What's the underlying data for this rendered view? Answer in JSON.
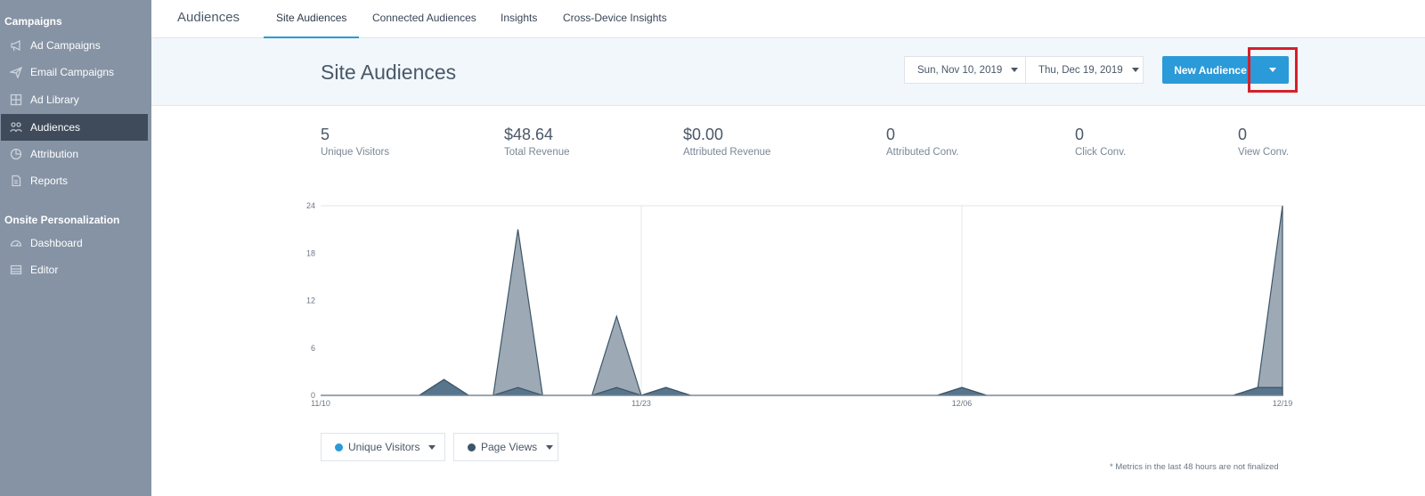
{
  "sidebar": {
    "section1": "Campaigns",
    "items1": [
      {
        "label": "Ad Campaigns",
        "icon": "megaphone-icon"
      },
      {
        "label": "Email Campaigns",
        "icon": "paper-plane-icon"
      },
      {
        "label": "Ad Library",
        "icon": "grid-icon"
      },
      {
        "label": "Audiences",
        "icon": "users-icon"
      },
      {
        "label": "Attribution",
        "icon": "pie-chart-icon"
      },
      {
        "label": "Reports",
        "icon": "document-icon"
      }
    ],
    "section2": "Onsite Personalization",
    "items2": [
      {
        "label": "Dashboard",
        "icon": "gauge-icon"
      },
      {
        "label": "Editor",
        "icon": "layout-icon"
      }
    ],
    "active_item": "Audiences"
  },
  "topnav": {
    "brand": "Audiences",
    "tabs": [
      "Site Audiences",
      "Connected Audiences",
      "Insights",
      "Cross-Device Insights"
    ],
    "active_tab": "Site Audiences"
  },
  "header": {
    "title": "Site Audiences",
    "start_date": "Sun, Nov 10, 2019",
    "end_date": "Thu, Dec 19, 2019",
    "new_button": "New Audience"
  },
  "stats": [
    {
      "value": "5",
      "label": "Unique Visitors"
    },
    {
      "value": "$48.64",
      "label": "Total Revenue"
    },
    {
      "value": "$0.00",
      "label": "Attributed Revenue"
    },
    {
      "value": "0",
      "label": "Attributed Conv."
    },
    {
      "value": "0",
      "label": "Click Conv."
    },
    {
      "value": "0",
      "label": "View Conv."
    }
  ],
  "chart_data": {
    "type": "area",
    "y_ticks": [
      "24",
      "18",
      "12",
      "6",
      "0"
    ],
    "x_ticks": [
      "11/10",
      "11/23",
      "12/06",
      "12/19"
    ],
    "ylim": [
      0,
      24
    ],
    "grid": true,
    "series": [
      {
        "name": "Page Views",
        "color": "#8c9ba8",
        "x": [
          "11/10",
          "11/11",
          "11/12",
          "11/13",
          "11/14",
          "11/15",
          "11/16",
          "11/17",
          "11/18",
          "11/19",
          "11/20",
          "11/21",
          "11/22",
          "11/23",
          "11/24",
          "11/25",
          "11/26",
          "11/27",
          "11/28",
          "11/29",
          "11/30",
          "12/01",
          "12/02",
          "12/03",
          "12/04",
          "12/05",
          "12/06",
          "12/07",
          "12/08",
          "12/09",
          "12/10",
          "12/11",
          "12/12",
          "12/13",
          "12/14",
          "12/15",
          "12/16",
          "12/17",
          "12/18",
          "12/19"
        ],
        "values": [
          0,
          0,
          0,
          0,
          0,
          2,
          0,
          0,
          21,
          0,
          0,
          0,
          10,
          0,
          1,
          0,
          0,
          0,
          0,
          0,
          0,
          0,
          0,
          0,
          0,
          0,
          1,
          0,
          0,
          0,
          0,
          0,
          0,
          0,
          0,
          0,
          0,
          0,
          1,
          24
        ]
      },
      {
        "name": "Unique Visitors",
        "color": "#4b6c85",
        "x": [
          "11/10",
          "11/11",
          "11/12",
          "11/13",
          "11/14",
          "11/15",
          "11/16",
          "11/17",
          "11/18",
          "11/19",
          "11/20",
          "11/21",
          "11/22",
          "11/23",
          "11/24",
          "11/25",
          "11/26",
          "11/27",
          "11/28",
          "11/29",
          "11/30",
          "12/01",
          "12/02",
          "12/03",
          "12/04",
          "12/05",
          "12/06",
          "12/07",
          "12/08",
          "12/09",
          "12/10",
          "12/11",
          "12/12",
          "12/13",
          "12/14",
          "12/15",
          "12/16",
          "12/17",
          "12/18",
          "12/19"
        ],
        "values": [
          0,
          0,
          0,
          0,
          0,
          2,
          0,
          0,
          1,
          0,
          0,
          0,
          1,
          0,
          1,
          0,
          0,
          0,
          0,
          0,
          0,
          0,
          0,
          0,
          0,
          0,
          1,
          0,
          0,
          0,
          0,
          0,
          0,
          0,
          0,
          0,
          0,
          0,
          1,
          1
        ]
      }
    ]
  },
  "legend": [
    {
      "label": "Unique Visitors",
      "color": "#2b9ad8"
    },
    {
      "label": "Page Views",
      "color": "#3d5568"
    }
  ],
  "footnote": "* Metrics in the last 48 hours are not finalized"
}
